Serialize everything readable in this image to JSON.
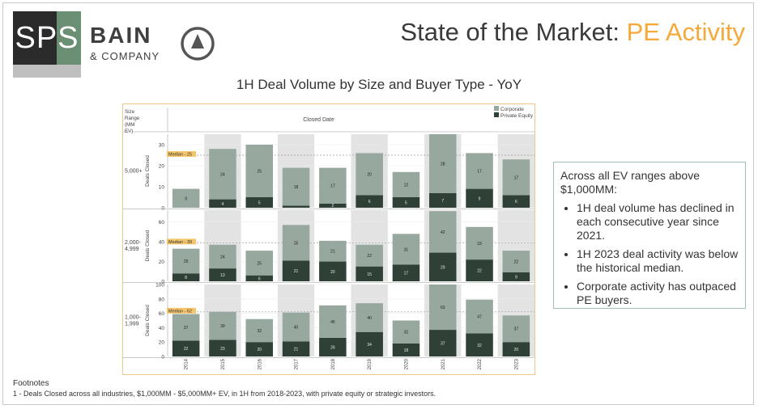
{
  "header": {
    "logo_left": "SPS",
    "logo_brand": "BAIN",
    "logo_company": "& COMPANY",
    "title_main": "State of the Market: ",
    "title_accent": "PE Activity"
  },
  "colors": {
    "corporate": "#97a89e",
    "private_equity": "#2f4136",
    "accent": "#f4a93a",
    "shade": "#e3e3e3",
    "median_label_bg": "#f4c56b"
  },
  "chart_data": {
    "type": "bar",
    "stacked": true,
    "title": "1H Deal Volume by Size and Buyer Type - YoY",
    "column_header": "Closed Date",
    "row_header": "Size Range (MM EV)",
    "categories": [
      "2014",
      "2015",
      "2016",
      "2017",
      "2018",
      "2019",
      "2020",
      "2021",
      "2022",
      "2023"
    ],
    "legend": [
      "Corporate",
      "Private Equity"
    ],
    "legend_position": "top-right",
    "panels": [
      {
        "size_range": "5,000+",
        "ylabel": "Deals Closed",
        "ylim": [
          0,
          35
        ],
        "yticks": [
          "0",
          "10",
          "20",
          "30"
        ],
        "median_label": "Median - 25",
        "median_value": 25,
        "series": [
          {
            "name": "Private Equity",
            "values": [
              0,
              4,
              5,
              1,
              2,
              6,
              5,
              7,
              9,
              6
            ]
          },
          {
            "name": "Corporate",
            "values": [
              9,
              24,
              25,
              18,
              17,
              20,
              12,
              28,
              17,
              17
            ]
          }
        ],
        "labels_pe": [
          "",
          "4",
          "5",
          "",
          "2",
          "6",
          "5",
          "7",
          "9",
          "6"
        ],
        "labels_corp": [
          "9",
          "24",
          "25",
          "18",
          "17",
          "20",
          "12",
          "28",
          "17",
          "17"
        ]
      },
      {
        "size_range": "2,000-4,999",
        "ylabel": "Deals Closed",
        "ylim": [
          0,
          72
        ],
        "yticks": [
          "0",
          "20",
          "40",
          "60"
        ],
        "median_label": "Median - 39",
        "median_value": 39,
        "series": [
          {
            "name": "Private Equity",
            "values": [
              8,
              13,
              6,
              21,
              20,
              15,
              17,
              29,
              22,
              9
            ]
          },
          {
            "name": "Corporate",
            "values": [
              25,
              24,
              25,
              36,
              21,
              22,
              31,
              42,
              33,
              22
            ]
          }
        ],
        "labels_pe": [
          "8",
          "13",
          "6",
          "21",
          "20",
          "15",
          "17",
          "29",
          "22",
          "9"
        ],
        "labels_corp": [
          "25",
          "24",
          "25",
          "36",
          "21",
          "22",
          "31",
          "42",
          "33",
          "22"
        ]
      },
      {
        "size_range": "1,000-1,999",
        "ylabel": "Deals Closed",
        "ylim": [
          0,
          100
        ],
        "yticks": [
          "0",
          "20",
          "40",
          "60",
          "80",
          "100"
        ],
        "median_label": "Median - 62",
        "median_value": 62,
        "series": [
          {
            "name": "Private Equity",
            "values": [
              22,
              23,
              20,
              21,
              26,
              34,
              18,
              37,
              32,
              20
            ]
          },
          {
            "name": "Corporate",
            "values": [
              37,
              39,
              32,
              40,
              45,
              40,
              32,
              63,
              47,
              37
            ]
          }
        ],
        "labels_pe": [
          "22",
          "23",
          "20",
          "21",
          "26",
          "34",
          "18",
          "37",
          "32",
          "20"
        ],
        "labels_corp": [
          "37",
          "39",
          "32",
          "40",
          "45",
          "40",
          "32",
          "63",
          "47",
          "37"
        ]
      }
    ]
  },
  "callout": {
    "head": "Across all EV ranges above $1,000MM:",
    "bullets": [
      "1H deal volume has declined in each consecutive year since 2021.",
      "1H 2023 deal activity was below the historical median.",
      "Corporate activity has outpaced PE buyers."
    ]
  },
  "footnotes": {
    "title": "Footnotes",
    "text": "1 - Deals Closed across all industries, $1,000MM - $5,000MM+ EV, in 1H from 2018-2023, with private equity or strategic investors."
  }
}
